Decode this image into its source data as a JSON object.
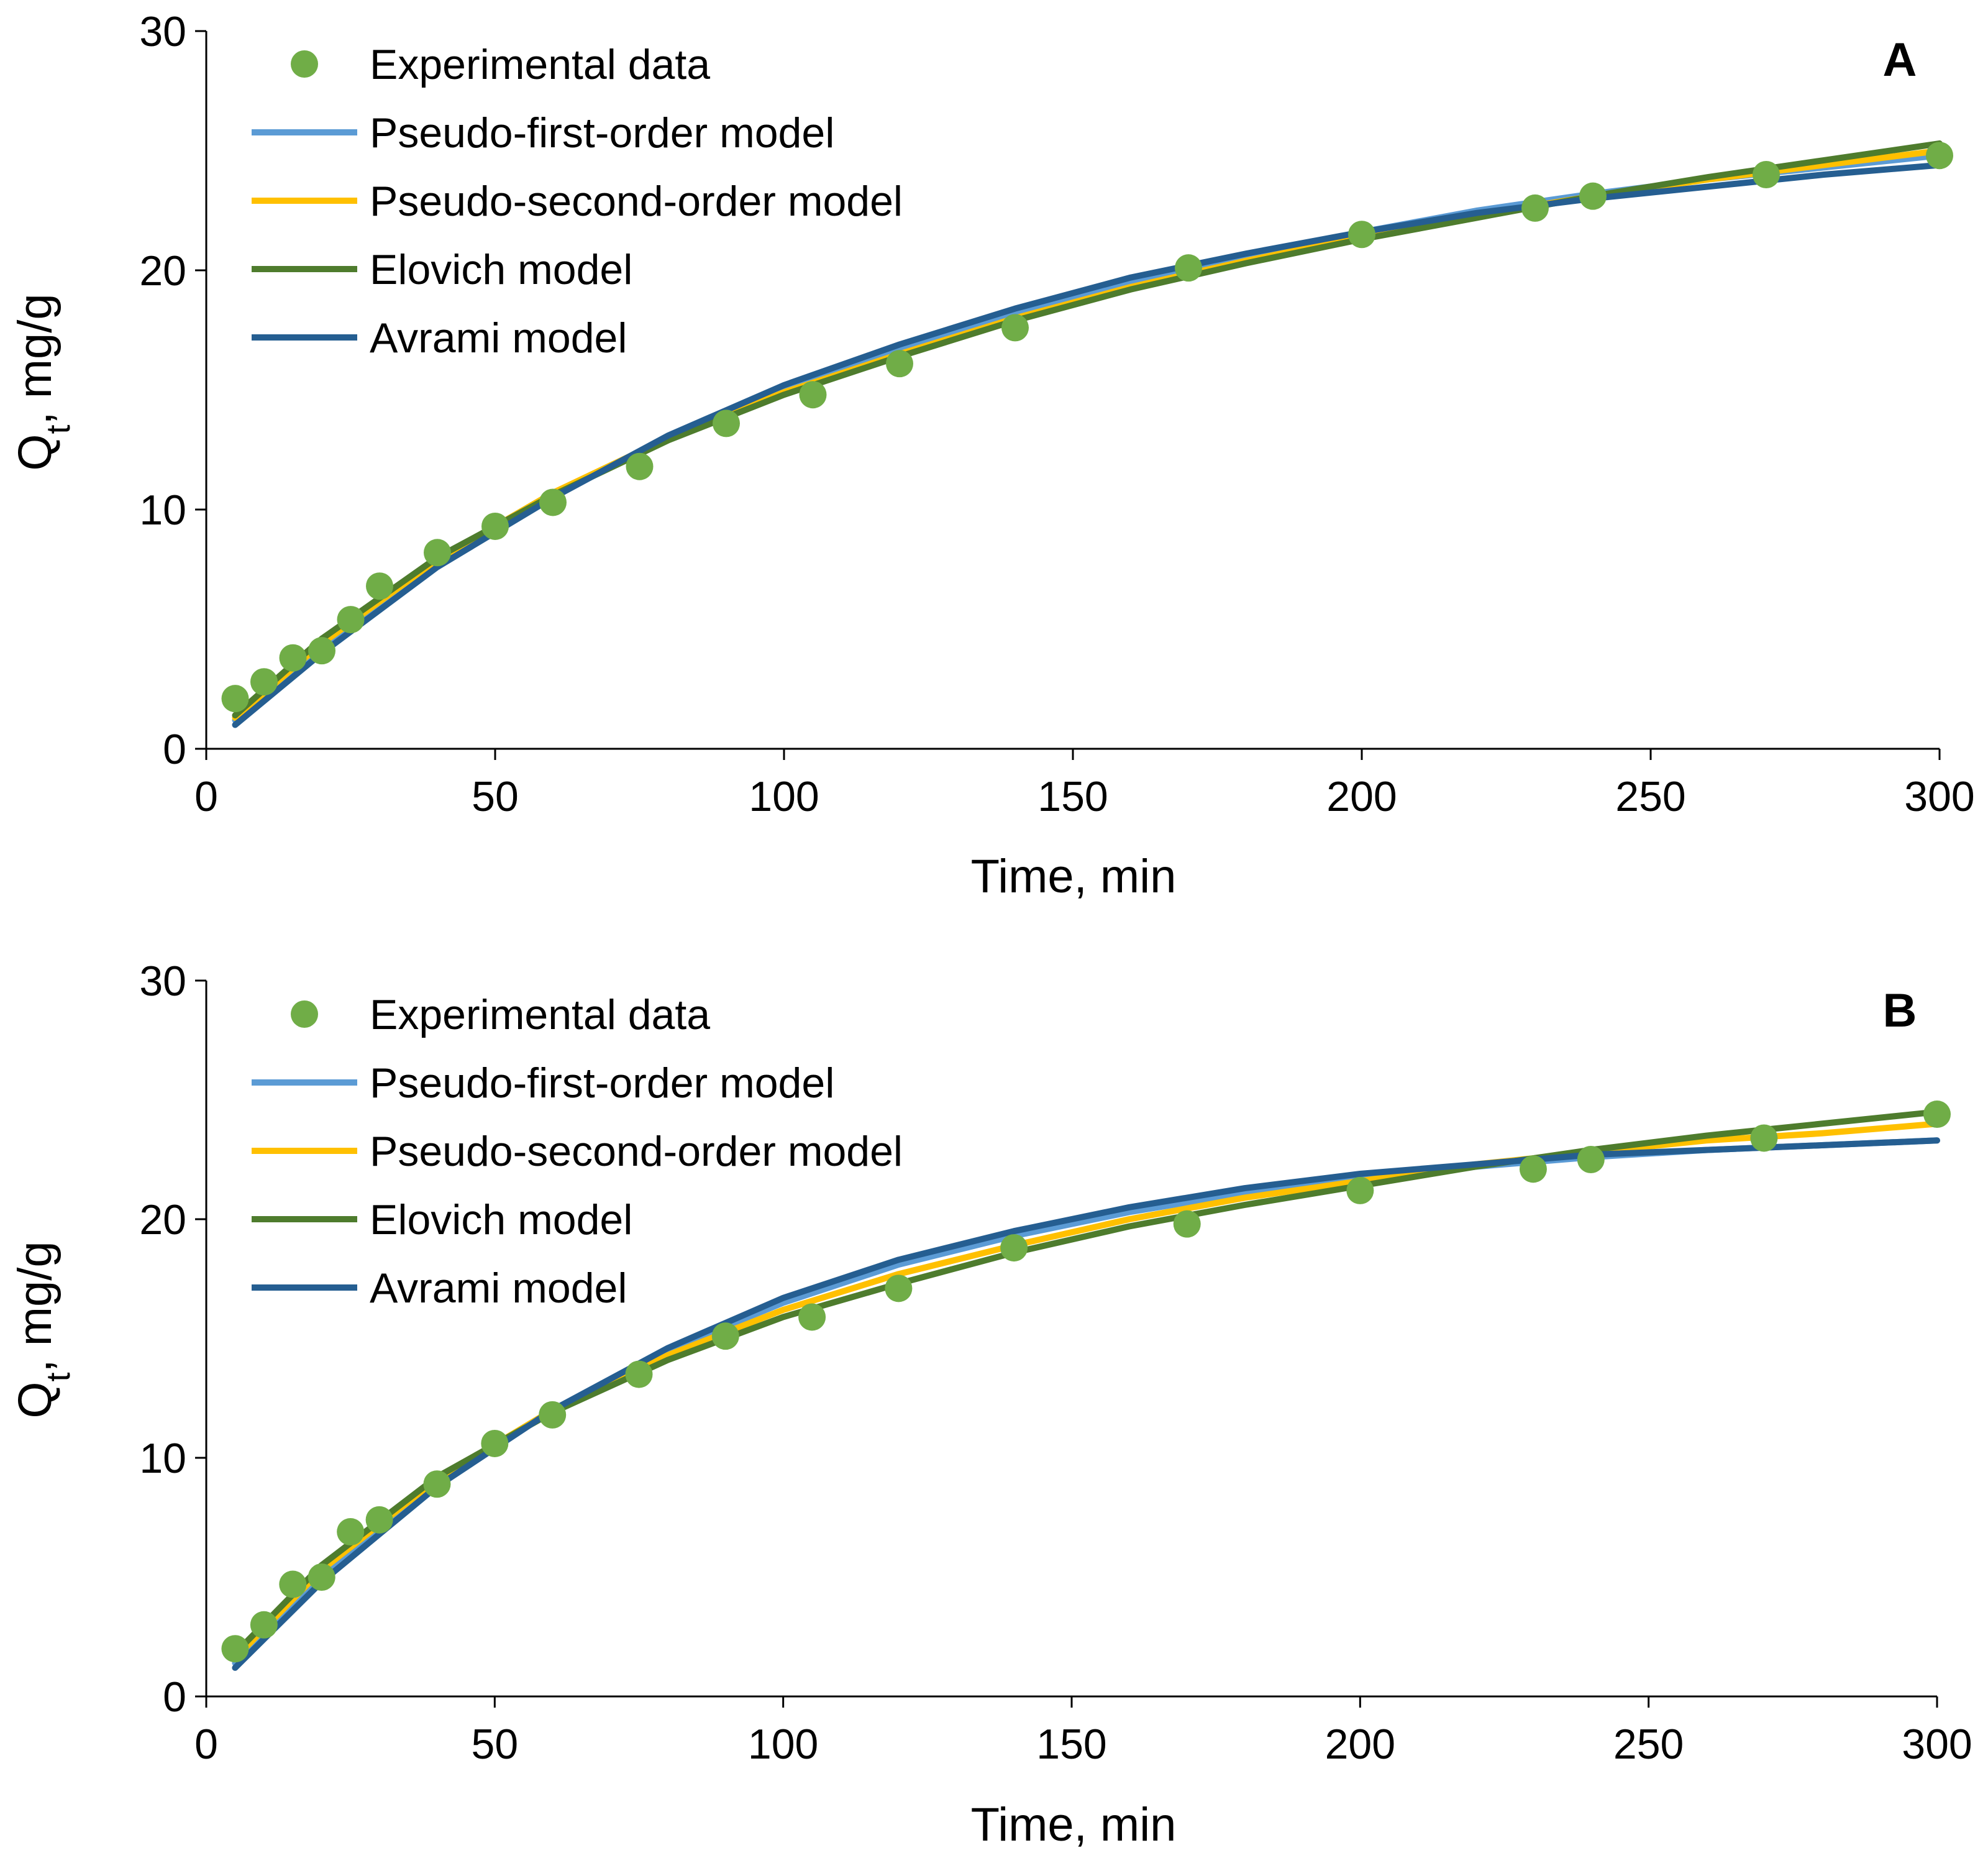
{
  "chart_data": [
    {
      "type": "scatter+line",
      "panel_label": "A",
      "title": "",
      "xlabel": "Time, min",
      "ylabel": {
        "main": "Q",
        "sub": "t",
        "rest": ", mg/g"
      },
      "xlim": [
        0,
        300
      ],
      "ylim": [
        0,
        30
      ],
      "xticks": [
        0,
        50,
        100,
        150,
        200,
        250,
        300
      ],
      "yticks": [
        0,
        10,
        20,
        30
      ],
      "grid": false,
      "legend_position": "top-left",
      "scatter": {
        "name": "Experimental data",
        "color": "#70AD47",
        "x": [
          5,
          10,
          15,
          20,
          25,
          30,
          40,
          50,
          60,
          75,
          90,
          105,
          120,
          140,
          170,
          200,
          230,
          240,
          270,
          300
        ],
        "y": [
          2.1,
          2.8,
          3.8,
          4.1,
          5.4,
          6.8,
          8.2,
          9.3,
          10.3,
          11.8,
          13.6,
          14.8,
          16.1,
          17.6,
          20.1,
          21.5,
          22.6,
          23.1,
          24.0,
          24.8
        ]
      },
      "series": [
        {
          "name": "Pseudo-first-order model",
          "color": "#5B9BD5",
          "x": [
            5,
            20,
            40,
            60,
            80,
            100,
            120,
            140,
            160,
            180,
            200,
            220,
            240,
            260,
            280,
            300
          ],
          "y": [
            1.2,
            4.3,
            7.8,
            10.6,
            13.0,
            15.0,
            16.7,
            18.2,
            19.5,
            20.6,
            21.6,
            22.5,
            23.2,
            23.8,
            24.3,
            24.8
          ]
        },
        {
          "name": "Pseudo-second-order model",
          "color": "#FFC000",
          "x": [
            5,
            20,
            40,
            60,
            80,
            100,
            120,
            140,
            160,
            180,
            200,
            220,
            240,
            260,
            280,
            300
          ],
          "y": [
            1.3,
            4.4,
            7.9,
            10.7,
            13.0,
            14.9,
            16.5,
            18.0,
            19.3,
            20.4,
            21.4,
            22.3,
            23.1,
            23.8,
            24.4,
            25.0
          ]
        },
        {
          "name": "Elovich model",
          "color": "#4E7C2D",
          "x": [
            5,
            20,
            40,
            60,
            80,
            100,
            120,
            140,
            160,
            180,
            200,
            220,
            240,
            260,
            280,
            300
          ],
          "y": [
            1.4,
            4.6,
            8.0,
            10.6,
            12.9,
            14.8,
            16.4,
            17.9,
            19.2,
            20.3,
            21.3,
            22.2,
            23.1,
            23.9,
            24.6,
            25.3
          ]
        },
        {
          "name": "Avrami model",
          "color": "#255E91",
          "x": [
            5,
            20,
            40,
            60,
            80,
            100,
            120,
            140,
            160,
            180,
            200,
            220,
            240,
            260,
            280,
            300
          ],
          "y": [
            1.0,
            4.0,
            7.6,
            10.5,
            13.1,
            15.2,
            16.9,
            18.4,
            19.7,
            20.7,
            21.6,
            22.4,
            23.0,
            23.5,
            24.0,
            24.4
          ]
        }
      ]
    },
    {
      "type": "scatter+line",
      "panel_label": "B",
      "title": "",
      "xlabel": "Time, min",
      "ylabel": {
        "main": "Q",
        "sub": "t",
        "rest": ", mg/g"
      },
      "xlim": [
        0,
        300
      ],
      "ylim": [
        0,
        30
      ],
      "xticks": [
        0,
        50,
        100,
        150,
        200,
        250,
        300
      ],
      "yticks": [
        0,
        10,
        20,
        30
      ],
      "grid": false,
      "legend_position": "top-left",
      "scatter": {
        "name": "Experimental data",
        "color": "#70AD47",
        "x": [
          5,
          10,
          15,
          20,
          25,
          30,
          40,
          50,
          60,
          75,
          90,
          105,
          120,
          140,
          170,
          200,
          230,
          240,
          270,
          300
        ],
        "y": [
          2.0,
          3.0,
          4.7,
          5.0,
          6.9,
          7.4,
          8.9,
          10.6,
          11.8,
          13.5,
          15.1,
          15.9,
          17.1,
          18.8,
          19.8,
          21.2,
          22.1,
          22.5,
          23.4,
          24.4
        ]
      },
      "series": [
        {
          "name": "Pseudo-first-order model",
          "color": "#5B9BD5",
          "x": [
            5,
            20,
            40,
            60,
            80,
            100,
            120,
            140,
            160,
            180,
            200,
            220,
            240,
            260,
            280,
            300
          ],
          "y": [
            1.4,
            5.0,
            8.9,
            12.0,
            14.5,
            16.5,
            18.1,
            19.3,
            20.3,
            21.1,
            21.7,
            22.2,
            22.6,
            22.9,
            23.1,
            23.3
          ]
        },
        {
          "name": "Pseudo-second-order model",
          "color": "#FFC000",
          "x": [
            5,
            20,
            40,
            60,
            80,
            100,
            120,
            140,
            160,
            180,
            200,
            220,
            240,
            260,
            280,
            300
          ],
          "y": [
            1.6,
            5.3,
            9.1,
            12.0,
            14.3,
            16.2,
            17.7,
            18.9,
            20.0,
            20.9,
            21.6,
            22.3,
            22.8,
            23.3,
            23.6,
            24.0
          ]
        },
        {
          "name": "Elovich model",
          "color": "#4E7C2D",
          "x": [
            5,
            20,
            40,
            60,
            80,
            100,
            120,
            140,
            160,
            180,
            200,
            220,
            240,
            260,
            280,
            300
          ],
          "y": [
            1.8,
            5.5,
            9.2,
            11.9,
            14.1,
            15.9,
            17.3,
            18.6,
            19.7,
            20.6,
            21.4,
            22.2,
            22.9,
            23.5,
            24.0,
            24.5
          ]
        },
        {
          "name": "Avrami model",
          "color": "#255E91",
          "x": [
            5,
            20,
            40,
            60,
            80,
            100,
            120,
            140,
            160,
            180,
            200,
            220,
            240,
            260,
            280,
            300
          ],
          "y": [
            1.2,
            4.8,
            8.8,
            12.0,
            14.6,
            16.7,
            18.3,
            19.5,
            20.5,
            21.3,
            21.9,
            22.3,
            22.7,
            22.9,
            23.1,
            23.3
          ]
        }
      ]
    }
  ]
}
